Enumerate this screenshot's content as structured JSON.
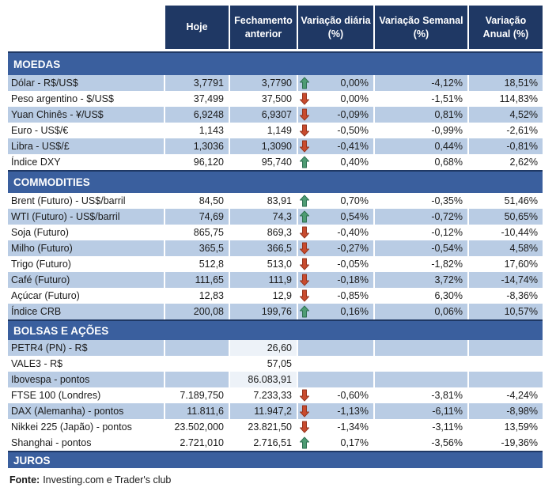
{
  "chart_data": {
    "type": "table",
    "columns": [
      "Hoje",
      "Fechamento anterior",
      "Variação diária (%)",
      "Variação Semanal (%)",
      "Variação Anual (%)"
    ],
    "sections": [
      {
        "id": "moedas",
        "title": "MOEDAS",
        "rows": [
          {
            "label": "Dólar - R$/US$",
            "hoje": "3,7791",
            "fechamento": "3,7790",
            "arrow": "up",
            "daily": "0,00%",
            "weekly": "-4,12%",
            "annual": "18,51%",
            "shaded": true
          },
          {
            "label": "Peso argentino - $/US$",
            "hoje": "37,499",
            "fechamento": "37,500",
            "arrow": "down",
            "daily": "0,00%",
            "weekly": "-1,51%",
            "annual": "114,83%",
            "shaded": false
          },
          {
            "label": "Yuan Chinês - ¥/US$",
            "hoje": "6,9248",
            "fechamento": "6,9307",
            "arrow": "down",
            "daily": "-0,09%",
            "weekly": "0,81%",
            "annual": "4,52%",
            "shaded": true
          },
          {
            "label": "Euro - US$/€",
            "hoje": "1,143",
            "fechamento": "1,149",
            "arrow": "down",
            "daily": "-0,50%",
            "weekly": "-0,99%",
            "annual": "-2,61%",
            "shaded": false
          },
          {
            "label": "Libra - US$/£",
            "hoje": "1,3036",
            "fechamento": "1,3090",
            "arrow": "down",
            "daily": "-0,41%",
            "weekly": "0,44%",
            "annual": "-0,81%",
            "shaded": true
          },
          {
            "label": "Índice DXY",
            "hoje": "96,120",
            "fechamento": "95,740",
            "arrow": "up",
            "daily": "0,40%",
            "weekly": "0,68%",
            "annual": "2,62%",
            "shaded": false
          }
        ]
      },
      {
        "id": "commodities",
        "title": "COMMODITIES",
        "rows": [
          {
            "label": "Brent (Futuro) - US$/barril",
            "hoje": "84,50",
            "fechamento": "83,91",
            "arrow": "up",
            "daily": "0,70%",
            "weekly": "-0,35%",
            "annual": "51,46%",
            "shaded": false
          },
          {
            "label": "WTI (Futuro) - US$/barril",
            "hoje": "74,69",
            "fechamento": "74,3",
            "arrow": "up",
            "daily": "0,54%",
            "weekly": "-0,72%",
            "annual": "50,65%",
            "shaded": true
          },
          {
            "label": "Soja (Futuro)",
            "hoje": "865,75",
            "fechamento": "869,3",
            "arrow": "down",
            "daily": "-0,40%",
            "weekly": "-0,12%",
            "annual": "-10,44%",
            "shaded": false
          },
          {
            "label": "Milho (Futuro)",
            "hoje": "365,5",
            "fechamento": "366,5",
            "arrow": "down",
            "daily": "-0,27%",
            "weekly": "-0,54%",
            "annual": "4,58%",
            "shaded": true
          },
          {
            "label": "Trigo (Futuro)",
            "hoje": "512,8",
            "fechamento": "513,0",
            "arrow": "down",
            "daily": "-0,05%",
            "weekly": "-1,82%",
            "annual": "17,60%",
            "shaded": false
          },
          {
            "label": "Café (Futuro)",
            "hoje": "111,65",
            "fechamento": "111,9",
            "arrow": "down",
            "daily": "-0,18%",
            "weekly": "3,72%",
            "annual": "-14,74%",
            "shaded": true
          },
          {
            "label": "Açúcar (Futuro)",
            "hoje": "12,83",
            "fechamento": "12,9",
            "arrow": "down",
            "daily": "-0,85%",
            "weekly": "6,30%",
            "annual": "-8,36%",
            "shaded": false
          },
          {
            "label": "Índice CRB",
            "hoje": "200,08",
            "fechamento": "199,76",
            "arrow": "up",
            "daily": "0,16%",
            "weekly": "0,06%",
            "annual": "10,57%",
            "shaded": true
          }
        ]
      },
      {
        "id": "bolsas-e-acoes",
        "title": "BOLSAS E AÇÕES",
        "rows": [
          {
            "label": "PETR4 (PN) - R$",
            "hoje": "",
            "fechamento": "26,60",
            "arrow": "",
            "daily": "",
            "weekly": "",
            "annual": "",
            "shaded": true,
            "fechamento_plain": true
          },
          {
            "label": "VALE3 - R$",
            "hoje": "",
            "fechamento": "57,05",
            "arrow": "",
            "daily": "",
            "weekly": "",
            "annual": "",
            "shaded": false
          },
          {
            "label": "Ibovespa - pontos",
            "hoje": "",
            "fechamento": "86.083,91",
            "arrow": "",
            "daily": "",
            "weekly": "",
            "annual": "",
            "shaded": true,
            "fechamento_plain": true
          },
          {
            "label": "FTSE 100 (Londres)",
            "hoje": "7.189,750",
            "fechamento": "7.233,33",
            "arrow": "down",
            "daily": "-0,60%",
            "weekly": "-3,81%",
            "annual": "-4,24%",
            "shaded": false
          },
          {
            "label": "DAX (Alemanha) - pontos",
            "hoje": "11.811,6",
            "fechamento": "11.947,2",
            "arrow": "down",
            "daily": "-1,13%",
            "weekly": "-6,11%",
            "annual": "-8,98%",
            "shaded": true
          },
          {
            "label": "Nikkei 225 (Japão) - pontos",
            "hoje": "23.502,000",
            "fechamento": "23.821,50",
            "arrow": "down",
            "daily": "-1,34%",
            "weekly": "-3,11%",
            "annual": "13,59%",
            "shaded": false
          },
          {
            "label": "Shanghai - pontos",
            "hoje": "2.721,010",
            "fechamento": "2.716,51",
            "arrow": "up",
            "daily": "0,17%",
            "weekly": "-3,56%",
            "annual": "-19,36%",
            "shaded": false
          }
        ]
      },
      {
        "id": "juros",
        "title": "JUROS",
        "rows": []
      }
    ]
  },
  "footer": {
    "source_label": "Fonte:",
    "source_text": "Investing.com e Trader's club"
  },
  "colors": {
    "header_bg": "#1F3864",
    "header_text": "#FFFFFF",
    "band_bg": "#3A5F9E",
    "row_alt_bg": "#B9CCE4",
    "plain_cell_bg": "#EDF2F8",
    "text": "#1B1B1B",
    "arrow_up": "#4E9C73",
    "arrow_up_border": "#2F7153",
    "arrow_down": "#C94B2E",
    "arrow_down_border": "#96351F"
  }
}
